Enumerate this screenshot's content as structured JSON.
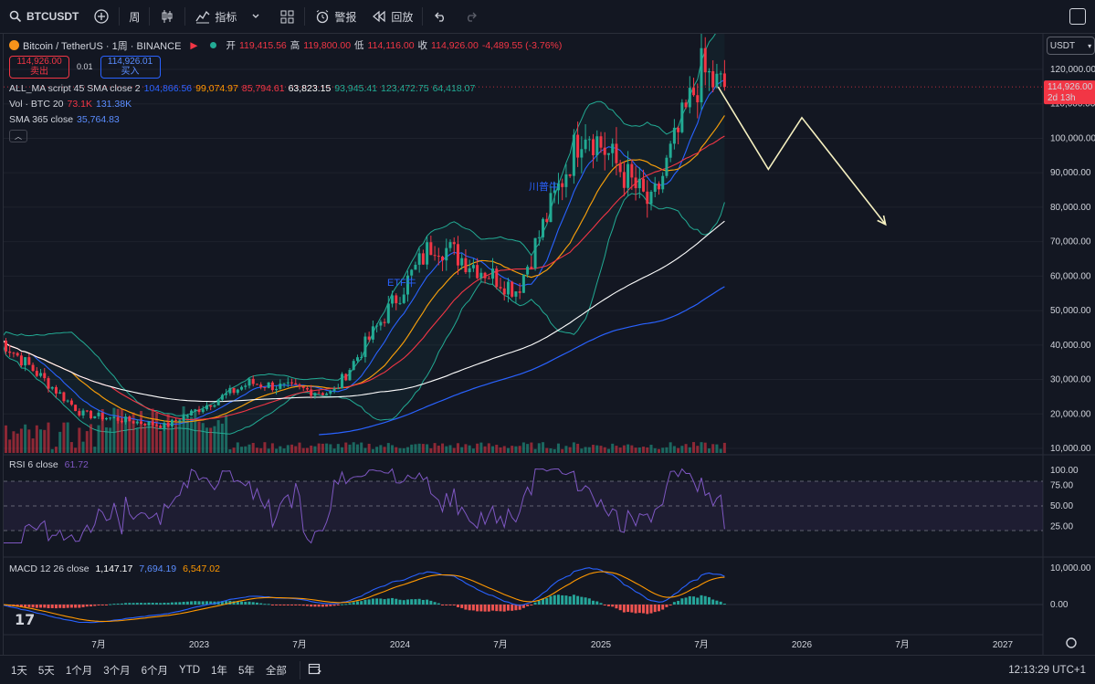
{
  "toolbar": {
    "symbol": "BTCUSDT",
    "interval": "周",
    "indicators_label": "指标",
    "alerts_label": "警报",
    "replay_label": "回放"
  },
  "header": {
    "symbol_title": "Bitcoin / TetherUS · 1周 · BINANCE",
    "open_label": "开",
    "open": "119,415.56",
    "high_label": "高",
    "high": "119,800.00",
    "low_label": "低",
    "low": "114,116.00",
    "close_label": "收",
    "close": "114,926.00",
    "change": "-4,489.55 (-3.76%)",
    "sell_price": "114,926.00",
    "sell_label": "卖出",
    "spread": "0.01",
    "buy_price": "114,926.01",
    "buy_label": "买入"
  },
  "indicators": {
    "ma_title": "ALL_MA script 45 SMA close 2",
    "ma_values": [
      "104,866.56",
      "99,074.97",
      "85,794.61",
      "63,823.15",
      "93,945.41",
      "123,472.75",
      "64,418.07"
    ],
    "ma_colors": [
      "#2962ff",
      "#ff9800",
      "#f23645",
      "#ffffff",
      "#22ab94",
      "#22ab94",
      "#22ab94"
    ],
    "vol_title": "Vol · BTC 20",
    "vol_values": [
      "73.1K",
      "131.38K"
    ],
    "sma_title": "SMA 365 close",
    "sma_value": "35,764.83",
    "rsi_title": "RSI 6 close",
    "rsi_value": "61.72",
    "macd_title": "MACD 12 26 close",
    "macd_values": [
      "1,147.17",
      "7,694.19",
      "6,547.02"
    ]
  },
  "price_axis": {
    "currency": "USDT",
    "ticks": [
      "120,000.00",
      "110,000.00",
      "100,000.00",
      "90,000.00",
      "80,000.00",
      "70,000.00",
      "60,000.00",
      "50,000.00",
      "40,000.00",
      "30,000.00",
      "20,000.00",
      "10,000.00"
    ],
    "last_price": "114,926.00",
    "countdown": "2d 13h",
    "rsi_ticks": [
      "100.00",
      "75.00",
      "50.00",
      "25.00"
    ],
    "macd_ticks": [
      "10,000.00",
      "0.00"
    ]
  },
  "time_axis": [
    "7月",
    "2023",
    "7月",
    "2024",
    "7月",
    "2025",
    "7月",
    "2026",
    "7月",
    "2027"
  ],
  "annotations": {
    "etf": "ETF牛",
    "trump": "川普牛"
  },
  "bottom": {
    "ranges": [
      "1天",
      "5天",
      "1个月",
      "3个月",
      "6个月",
      "YTD",
      "1年",
      "5年",
      "全部"
    ],
    "clock": "12:13:29 UTC+1"
  },
  "colors": {
    "up": "#22ab94",
    "down": "#f23645",
    "background": "#131722",
    "forecast": "#f5f0c0",
    "rsi": "#7e57c2"
  },
  "chart_data": {
    "type": "candlestick",
    "interval": "1W",
    "symbol": "BTCUSDT",
    "x_range": [
      "2022-01",
      "2027-04"
    ],
    "y_range": [
      10000,
      125000
    ],
    "key_points": [
      {
        "date": "2022-01",
        "price": 42000
      },
      {
        "date": "2022-06",
        "price": 20000
      },
      {
        "date": "2022-11",
        "price": 16500
      },
      {
        "date": "2023-04",
        "price": 29000
      },
      {
        "date": "2023-09",
        "price": 26000
      },
      {
        "date": "2024-03",
        "price": 70000
      },
      {
        "date": "2024-08",
        "price": 56000
      },
      {
        "date": "2024-12",
        "price": 104000
      },
      {
        "date": "2025-04",
        "price": 80000
      },
      {
        "date": "2025-07",
        "price": 119400
      },
      {
        "date": "2025-08",
        "price": 114926
      }
    ],
    "forecast_path": [
      {
        "date": "2025-08",
        "price": 114926
      },
      {
        "date": "2025-11",
        "price": 91000
      },
      {
        "date": "2026-01",
        "price": 106000
      },
      {
        "date": "2026-06",
        "price": 75000
      }
    ]
  }
}
